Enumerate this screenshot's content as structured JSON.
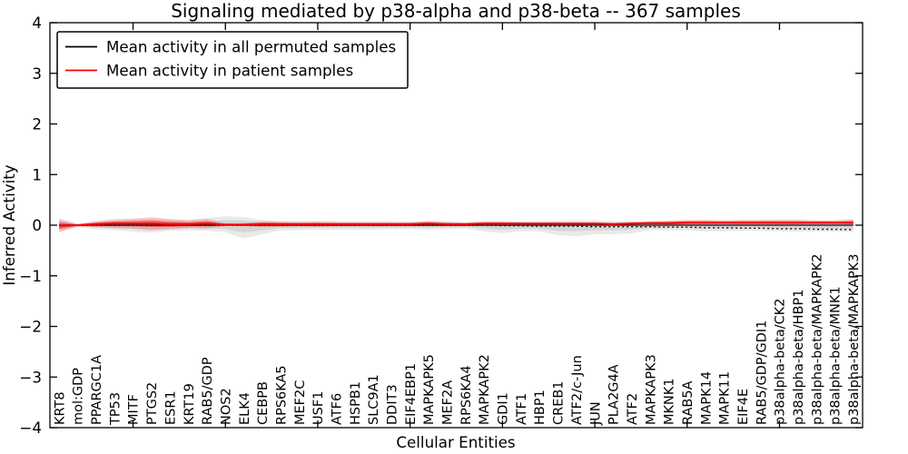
{
  "title": "Signaling mediated by p38-alpha and p38-beta -- 367 samples",
  "axes": {
    "xlabel": "Cellular Entities",
    "ylabel": "Inferred Activity",
    "ytick_values": [
      4,
      3,
      2,
      1,
      0,
      -1,
      -2,
      -3,
      -4
    ],
    "ytick_labels": [
      "4",
      "3",
      "2",
      "1",
      "0",
      "−1",
      "−2",
      "−3",
      "−4"
    ],
    "xtick_values": [
      5,
      10,
      15,
      20,
      25,
      30,
      35,
      40
    ]
  },
  "legend": {
    "items": [
      {
        "label": "Mean activity in all permuted samples",
        "color": "#000000"
      },
      {
        "label": "Mean activity in patient samples",
        "color": "#ff0000"
      }
    ]
  },
  "colors": {
    "frame": "#000000",
    "gray_band": "#c9c9c9",
    "red_band": "#ff3030",
    "red_band_inner": "#ff1414",
    "permuted_line": "#111111",
    "patient_line": "#ff0000",
    "dotted_line": "#111111"
  },
  "chart_data": {
    "type": "line",
    "title": "Signaling mediated by p38-alpha and p38-beta -- 367 samples",
    "xlabel": "Cellular Entities",
    "ylabel": "Inferred Activity",
    "ylim": [
      -4,
      4
    ],
    "grid": false,
    "legend_position": "upper left",
    "categories": [
      "KRT8",
      "mol:GDP",
      "PPARGC1A",
      "TP53",
      "MITF",
      "PTGS2",
      "ESR1",
      "KRT19",
      "RAB5/GDP",
      "NOS2",
      "ELK4",
      "CEBPB",
      "RPS6KA5",
      "MEF2C",
      "USF1",
      "ATF6",
      "HSPB1",
      "SLC9A1",
      "DDIT3",
      "EIF4EBP1",
      "MAPKAPK5",
      "MEF2A",
      "RPS6KA4",
      "MAPKAPK2",
      "GDI1",
      "ATF1",
      "HBP1",
      "CREB1",
      "ATF2/c-Jun",
      "JUN",
      "PLA2G4A",
      "ATF2",
      "MAPKAPK3",
      "MKNK1",
      "RAB5A",
      "MAPK14",
      "MAPK11",
      "EIF4E",
      "RAB5/GDP/GDI1",
      "p38alpha-beta/CK2",
      "p38alpha-beta/HBP1",
      "p38alpha-beta/MAPKAPK2",
      "p38alpha-beta/MNK1",
      "p38alpha-beta/MAPKAPK3"
    ],
    "series": [
      {
        "name": "Mean activity in all permuted samples",
        "style": "solid",
        "color": "#111111",
        "values": [
          0,
          0,
          0,
          0,
          0,
          0,
          0,
          0,
          0,
          0,
          0,
          0,
          0,
          0,
          0,
          0,
          0,
          0,
          0,
          0,
          0,
          0,
          0,
          0,
          0,
          0,
          0,
          0,
          0,
          0,
          0,
          0,
          0,
          0,
          0,
          0,
          0,
          0,
          0,
          0,
          0,
          0,
          0,
          0
        ]
      },
      {
        "name": "Mean activity in patient samples",
        "style": "solid",
        "color": "#ff0000",
        "values": [
          -0.01,
          0.0,
          0.02,
          0.03,
          0.03,
          0.03,
          0.02,
          0.02,
          0.03,
          0.01,
          0.01,
          0.02,
          0.02,
          0.02,
          0.02,
          0.02,
          0.02,
          0.02,
          0.02,
          0.02,
          0.03,
          0.02,
          0.02,
          0.03,
          0.03,
          0.03,
          0.03,
          0.03,
          0.03,
          0.03,
          0.02,
          0.03,
          0.04,
          0.04,
          0.05,
          0.05,
          0.05,
          0.05,
          0.05,
          0.05,
          0.05,
          0.05,
          0.05,
          0.05
        ]
      },
      {
        "name": "dotted baseline",
        "style": "dotted",
        "color": "#111111",
        "values": [
          0,
          0,
          0,
          0,
          0,
          0,
          0,
          0,
          0,
          0,
          0,
          0,
          0,
          0,
          0,
          0,
          0,
          0,
          0,
          0,
          0,
          0,
          0,
          0,
          -0.01,
          -0.01,
          -0.02,
          -0.02,
          -0.02,
          -0.03,
          -0.03,
          -0.03,
          -0.03,
          -0.04,
          -0.04,
          -0.05,
          -0.05,
          -0.06,
          -0.06,
          -0.07,
          -0.07,
          -0.08,
          -0.08,
          -0.09
        ]
      }
    ],
    "bands": [
      {
        "name": "permuted samples spread",
        "color": "#c9c9c9",
        "upper": [
          0.12,
          0.03,
          0.07,
          0.09,
          0.11,
          0.13,
          0.11,
          0.1,
          0.13,
          0.18,
          0.16,
          0.1,
          0.08,
          0.08,
          0.08,
          0.08,
          0.08,
          0.08,
          0.07,
          0.07,
          0.08,
          0.08,
          0.06,
          0.08,
          0.08,
          0.07,
          0.08,
          0.09,
          0.1,
          0.09,
          0.08,
          0.07,
          0.07,
          0.08,
          0.09,
          0.1,
          0.1,
          0.1,
          0.1,
          0.11,
          0.11,
          0.1,
          0.1,
          0.12
        ],
        "lower": [
          -0.12,
          -0.04,
          -0.08,
          -0.1,
          -0.13,
          -0.15,
          -0.11,
          -0.1,
          -0.11,
          -0.14,
          -0.26,
          -0.18,
          -0.1,
          -0.1,
          -0.09,
          -0.09,
          -0.09,
          -0.09,
          -0.08,
          -0.08,
          -0.09,
          -0.08,
          -0.07,
          -0.12,
          -0.16,
          -0.12,
          -0.12,
          -0.2,
          -0.22,
          -0.18,
          -0.18,
          -0.16,
          -0.1,
          -0.1,
          -0.1,
          -0.12,
          -0.12,
          -0.11,
          -0.11,
          -0.12,
          -0.13,
          -0.12,
          -0.12,
          -0.14
        ]
      },
      {
        "name": "patient samples spread",
        "color": "#ff3030",
        "center_series": 1,
        "halfwidth": [
          0.13,
          0.02,
          0.06,
          0.09,
          0.1,
          0.13,
          0.1,
          0.08,
          0.1,
          0.02,
          0.03,
          0.06,
          0.05,
          0.04,
          0.05,
          0.04,
          0.04,
          0.04,
          0.04,
          0.04,
          0.05,
          0.04,
          0.03,
          0.04,
          0.04,
          0.03,
          0.03,
          0.03,
          0.03,
          0.03,
          0.03,
          0.04,
          0.04,
          0.05,
          0.05,
          0.05,
          0.04,
          0.05,
          0.05,
          0.05,
          0.05,
          0.04,
          0.04,
          0.06
        ]
      }
    ]
  }
}
